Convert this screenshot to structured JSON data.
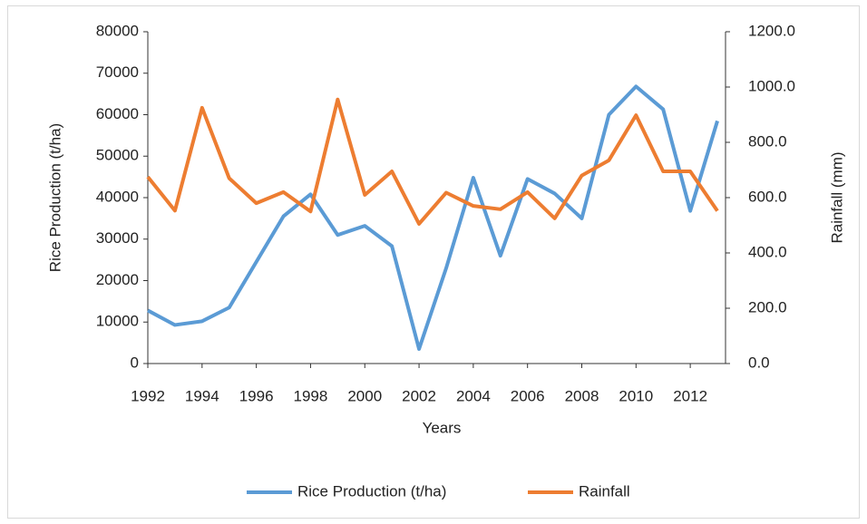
{
  "chart_data": {
    "type": "line",
    "x_label": "Years",
    "y_label": "Rice Production (t/ha)",
    "y2_label": "Rainfall (mm)",
    "x": [
      1992,
      1993,
      1994,
      1995,
      1996,
      1997,
      1998,
      1999,
      2000,
      2001,
      2002,
      2003,
      2004,
      2005,
      2006,
      2007,
      2008,
      2009,
      2010,
      2011,
      2012,
      2013
    ],
    "series": [
      {
        "name": "Rice Production (t/ha)",
        "color": "#5b9bd5",
        "values": [
          12800,
          9300,
          10200,
          13500,
          24500,
          35500,
          40800,
          31000,
          33200,
          28300,
          3500,
          23000,
          44800,
          26000,
          44500,
          41000,
          35000,
          60000,
          66800,
          61300,
          36800,
          58500
        ]
      },
      {
        "name": "Rainfall",
        "color": "#ed7d31",
        "axis": "y2",
        "values": [
          675,
          553,
          925,
          670,
          580,
          620,
          550,
          955,
          610,
          695,
          505,
          618,
          570,
          558,
          620,
          525,
          680,
          735,
          898,
          695,
          695,
          552
        ]
      }
    ],
    "xlim": [
      1992,
      2013.3
    ],
    "xticks": [
      1992,
      1994,
      1996,
      1998,
      2000,
      2002,
      2004,
      2006,
      2008,
      2010,
      2012
    ],
    "ylim": [
      0,
      80000
    ],
    "yticks": [
      0,
      10000,
      20000,
      30000,
      40000,
      50000,
      60000,
      70000,
      80000
    ],
    "y2lim": [
      0,
      1200
    ],
    "y2ticks": [
      {
        "value": 0,
        "label": "0.0"
      },
      {
        "value": 200,
        "label": "200.0"
      },
      {
        "value": 400,
        "label": "400.0"
      },
      {
        "value": 600,
        "label": "600.0"
      },
      {
        "value": 800,
        "label": "800.0"
      },
      {
        "value": 1000,
        "label": "1000.0"
      },
      {
        "value": 1200,
        "label": "1200.0"
      }
    ],
    "legend": "bottom"
  }
}
